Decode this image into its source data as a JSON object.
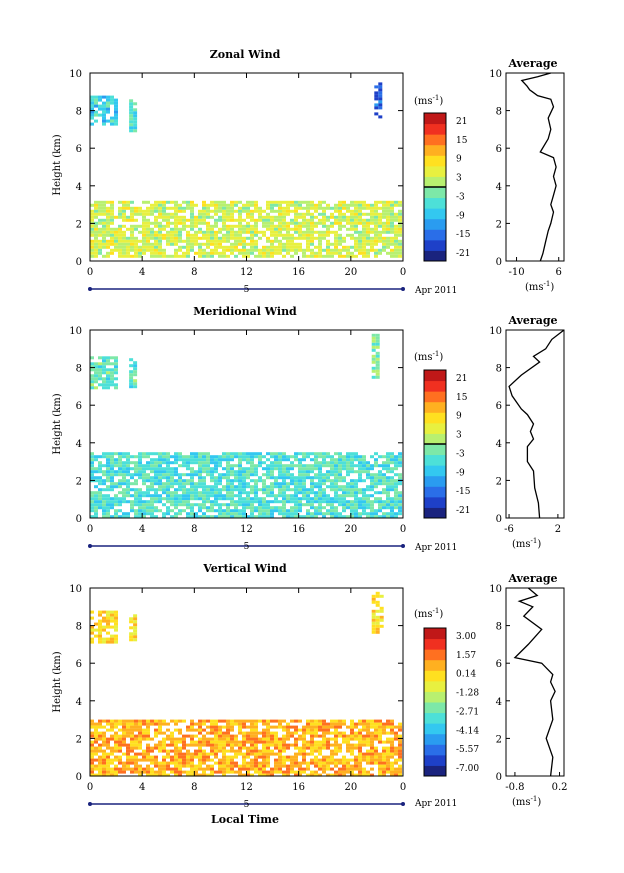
{
  "colorscale": [
    "#1a237e",
    "#1e40c8",
    "#2a6ee8",
    "#2a9cf0",
    "#33c8f0",
    "#4de0d8",
    "#7de8a8",
    "#b8f070",
    "#e8f040",
    "#ffe020",
    "#ffb020",
    "#ff7020",
    "#f03020",
    "#c01818"
  ],
  "panels": [
    {
      "title": "Zonal Wind",
      "ylabel": "Height (km)",
      "yticks": [
        "0",
        "2",
        "4",
        "6",
        "8",
        "10"
      ],
      "xticks": [
        "0",
        "4",
        "8",
        "12",
        "16",
        "20",
        "0"
      ],
      "date_marker": "5",
      "date_label": "Apr 2011",
      "cb_unit": "(ms",
      "cb_sup": "-1",
      "cb_unit_end": ")",
      "cb_ticks": [
        "21",
        "15",
        "9",
        "3",
        "-3",
        "-9",
        "-15",
        "-21"
      ],
      "avg_title": "Average",
      "avg_yticks": [
        "0",
        "2",
        "4",
        "6",
        "8",
        "10"
      ],
      "avg_xticks": [
        "-10",
        "6"
      ],
      "avg_unit": "(ms",
      "avg_sup": "-1",
      "avg_unit_end": ")"
    },
    {
      "title": "Meridional Wind",
      "ylabel": "Height (km)",
      "yticks": [
        "0",
        "2",
        "4",
        "6",
        "8",
        "10"
      ],
      "xticks": [
        "0",
        "4",
        "8",
        "12",
        "16",
        "20",
        "0"
      ],
      "date_marker": "5",
      "date_label": "Apr 2011",
      "cb_unit": "(ms",
      "cb_sup": "-1",
      "cb_unit_end": ")",
      "cb_ticks": [
        "21",
        "15",
        "9",
        "3",
        "-3",
        "-9",
        "-15",
        "-21"
      ],
      "avg_title": "Average",
      "avg_yticks": [
        "0",
        "2",
        "4",
        "6",
        "8",
        "10"
      ],
      "avg_xticks": [
        "-6",
        "2"
      ],
      "avg_unit": "(ms",
      "avg_sup": "-1",
      "avg_unit_end": ")"
    },
    {
      "title": "Vertical Wind",
      "ylabel": "Height (km)",
      "yticks": [
        "0",
        "2",
        "4",
        "6",
        "8",
        "10"
      ],
      "xticks": [
        "0",
        "4",
        "8",
        "12",
        "16",
        "20",
        "0"
      ],
      "date_marker": "5",
      "date_label": "Apr 2011",
      "cb_unit": "(ms",
      "cb_sup": "-1",
      "cb_unit_end": ")",
      "cb_ticks": [
        "3.00",
        "1.57",
        "0.14",
        "-1.28",
        "-2.71",
        "-4.14",
        "-5.57",
        "-7.00"
      ],
      "avg_title": "Average",
      "avg_yticks": [
        "0",
        "2",
        "4",
        "6",
        "8",
        "10"
      ],
      "avg_xticks": [
        "-0.8",
        "0.2"
      ],
      "avg_unit": "(ms",
      "avg_sup": "-1",
      "avg_unit_end": ")",
      "xlabel": "Local Time"
    }
  ],
  "chart_data": [
    {
      "type": "heatmap",
      "title": "Zonal Wind",
      "ylabel": "Height (km)",
      "x_range_hours": [
        0,
        24
      ],
      "ylim": [
        0,
        10
      ],
      "color_range": [
        -21,
        21
      ],
      "regions": [
        {
          "hours": [
            0,
            24
          ],
          "km": [
            0.2,
            3.2
          ],
          "value": 3
        },
        {
          "hours": [
            0,
            2
          ],
          "km": [
            7.2,
            8.8
          ],
          "value": -6
        },
        {
          "hours": [
            3,
            3.6
          ],
          "km": [
            6.8,
            8.6
          ],
          "value": -4
        },
        {
          "hours": [
            21.8,
            22.4
          ],
          "km": [
            7.6,
            9.5
          ],
          "value": -14
        }
      ]
    },
    {
      "type": "line",
      "title": "Average",
      "xlim": [
        -14,
        8
      ],
      "ylim": [
        0,
        10
      ],
      "x": [
        -1,
        0,
        1,
        2,
        3,
        4,
        3,
        4,
        5,
        4,
        5,
        4,
        -1,
        2,
        3,
        2,
        4,
        3,
        -2,
        -4,
        -5,
        -6,
        -8,
        -2,
        3
      ],
      "y": [
        0,
        0.4,
        1,
        1.6,
        2,
        2.6,
        3,
        3.5,
        4,
        4.5,
        5,
        5.5,
        5.8,
        6.5,
        7,
        7.6,
        8.2,
        8.6,
        8.8,
        9,
        9.1,
        9.3,
        9.6,
        9.8,
        10
      ]
    },
    {
      "type": "heatmap",
      "title": "Meridional Wind",
      "ylabel": "Height (km)",
      "x_range_hours": [
        0,
        24
      ],
      "ylim": [
        0,
        10
      ],
      "color_range": [
        -21,
        21
      ],
      "regions": [
        {
          "hours": [
            0,
            24
          ],
          "km": [
            0,
            3.5
          ],
          "value": -4
        },
        {
          "hours": [
            0,
            2
          ],
          "km": [
            6.9,
            8.6
          ],
          "value": -3
        },
        {
          "hours": [
            3,
            3.6
          ],
          "km": [
            7,
            8.5
          ],
          "value": -3
        },
        {
          "hours": [
            21.6,
            22.2
          ],
          "km": [
            7.5,
            9.8
          ],
          "value": -1
        }
      ]
    },
    {
      "type": "line",
      "title": "Average",
      "xlim": [
        -6.5,
        3
      ],
      "ylim": [
        0,
        10
      ],
      "x": [
        -1,
        -1.2,
        -1.8,
        -2,
        -3,
        -3,
        -2,
        -2.5,
        -2,
        -3,
        -4,
        -5.5,
        -6,
        -4,
        -1,
        -2,
        0,
        1,
        3
      ],
      "y": [
        0,
        0.8,
        1.6,
        2.5,
        3,
        3.8,
        4.2,
        4.6,
        5,
        5.5,
        5.8,
        6.5,
        7,
        7.6,
        8.3,
        8.6,
        9,
        9.5,
        10
      ]
    },
    {
      "type": "heatmap",
      "title": "Vertical Wind",
      "ylabel": "Height (km)",
      "xlabel": "Local Time",
      "x_range_hours": [
        0,
        24
      ],
      "ylim": [
        0,
        10
      ],
      "color_range": [
        -7.0,
        3.0
      ],
      "regions": [
        {
          "hours": [
            0,
            24
          ],
          "km": [
            0,
            3
          ],
          "value": 0.4
        },
        {
          "hours": [
            0,
            2
          ],
          "km": [
            7,
            8.8
          ],
          "value": -0.2
        },
        {
          "hours": [
            3,
            3.6
          ],
          "km": [
            7.2,
            8.6
          ],
          "value": -0.2
        },
        {
          "hours": [
            21.6,
            22.4
          ],
          "km": [
            7.6,
            9.8
          ],
          "value": -0.3
        }
      ]
    },
    {
      "type": "line",
      "title": "Average",
      "xlim": [
        -1,
        0.3
      ],
      "ylim": [
        0,
        10
      ],
      "x": [
        0,
        0.05,
        -0.1,
        0.05,
        0,
        0.1,
        0,
        0.05,
        -0.2,
        -0.8,
        -0.5,
        -0.2,
        -0.6,
        -0.4,
        -0.7,
        -0.3,
        -0.5
      ],
      "y": [
        0,
        1,
        2,
        3,
        4,
        4.5,
        5,
        5.4,
        6,
        6.3,
        7,
        7.8,
        8.5,
        9,
        9.3,
        9.6,
        10
      ]
    }
  ]
}
